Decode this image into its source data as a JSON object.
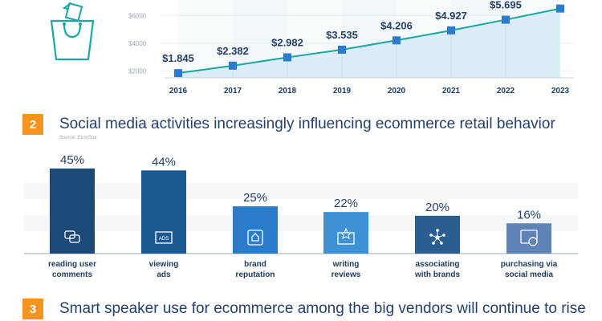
{
  "sections": [
    {
      "number": "2",
      "title": "Social media activities increasingly influencing ecommerce retail behavior",
      "source": "Source: EconStor"
    },
    {
      "number": "3",
      "title": "Smart speaker use for ecommerce among the big vendors will continue to rise"
    }
  ],
  "icons": {
    "header": "shopping-bag-icon",
    "bars": [
      "comments-icon",
      "ads-icon",
      "thumbs-up-icon",
      "review-icon",
      "network-icon",
      "social-purchase-icon"
    ]
  },
  "colors": {
    "accent": "#f7941d",
    "line": "#1aa7a3",
    "marker": "#2b7bd0",
    "area": "#d7ebf6",
    "bars": [
      "#1b4a78",
      "#1c5a93",
      "#2a7bc9",
      "#3d92d6",
      "#2a5e8e",
      "#5e83b6"
    ]
  },
  "chart_data": [
    {
      "type": "area",
      "categories": [
        "2016",
        "2017",
        "2018",
        "2019",
        "2020",
        "2021",
        "2022",
        "2023"
      ],
      "values": [
        1845,
        2382,
        2982,
        3535,
        4206,
        4927,
        5695,
        6500
      ],
      "data_labels": [
        "$1.845",
        "$2.382",
        "$2.982",
        "$3.535",
        "$4.206",
        "$4.927",
        "$5.695",
        ""
      ],
      "y_ticks": [
        "$2000",
        "$4000",
        "$6000"
      ],
      "y_tick_values": [
        2000,
        4000,
        6000
      ],
      "ylim": [
        0,
        7000
      ],
      "grid": true
    },
    {
      "type": "bar",
      "categories": [
        "reading user comments",
        "viewing ads",
        "brand reputation",
        "writing reviews",
        "associating with brands",
        "purchasing via social media"
      ],
      "category_lines": [
        [
          "reading user",
          "comments"
        ],
        [
          "viewing",
          "ads"
        ],
        [
          "brand",
          "reputation"
        ],
        [
          "writing",
          "reviews"
        ],
        [
          "associating",
          "with brands"
        ],
        [
          "purchasing via",
          "social media"
        ]
      ],
      "values": [
        45,
        44,
        25,
        22,
        20,
        16
      ],
      "data_labels": [
        "45%",
        "44%",
        "25%",
        "22%",
        "20%",
        "16%"
      ],
      "ylim": [
        0,
        50
      ],
      "grid": true
    }
  ]
}
